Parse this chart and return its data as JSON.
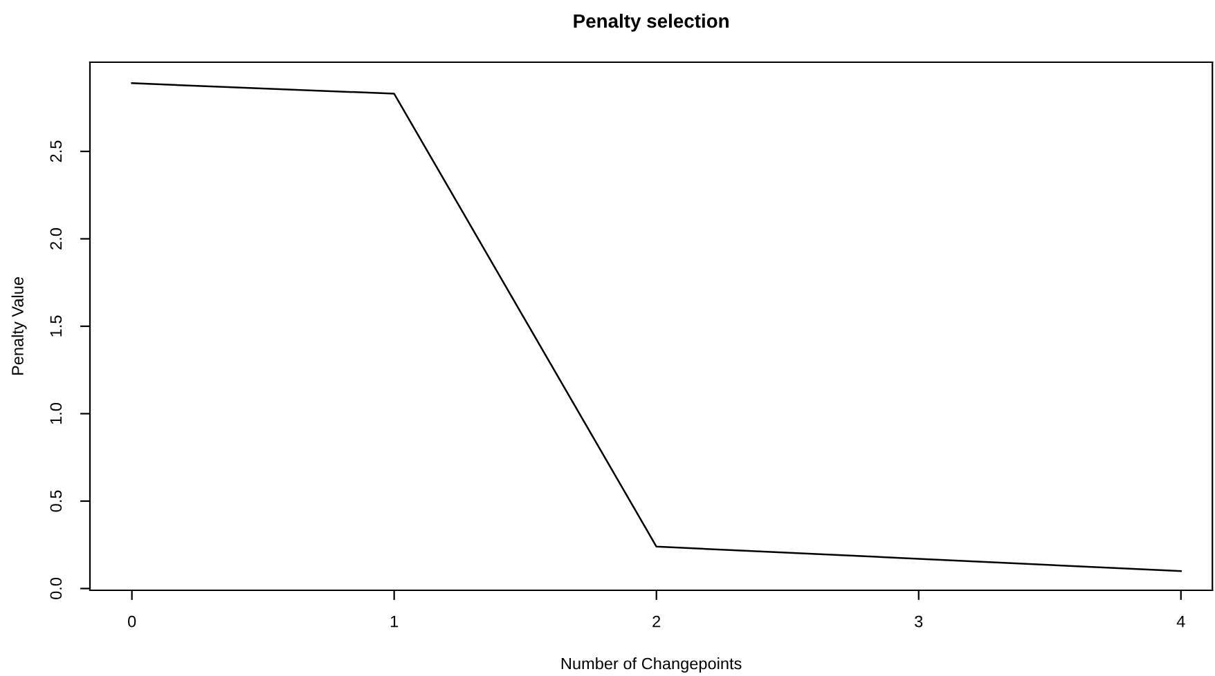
{
  "chart_data": {
    "type": "line",
    "title": "Penalty selection",
    "xlabel": "Number of Changepoints",
    "ylabel": "Penalty Value",
    "x": [
      0,
      1,
      2,
      3,
      4
    ],
    "series": [
      {
        "color": "#000000",
        "values": [
          2.89,
          2.83,
          0.24,
          0.17,
          0.1
        ]
      }
    ],
    "xlim": [
      -0.16,
      4.12
    ],
    "ylim": [
      -0.01,
      3.01
    ],
    "xticks": [
      0,
      1,
      2,
      3,
      4
    ],
    "yticks": [
      {
        "value": 0,
        "label": "0.0"
      },
      0.5,
      {
        "value": 1,
        "label": "1.0"
      },
      1.5,
      {
        "value": 2,
        "label": "2.0"
      },
      2.5
    ],
    "grid": false,
    "legend": false,
    "marker": "none",
    "line_style": "solid"
  }
}
